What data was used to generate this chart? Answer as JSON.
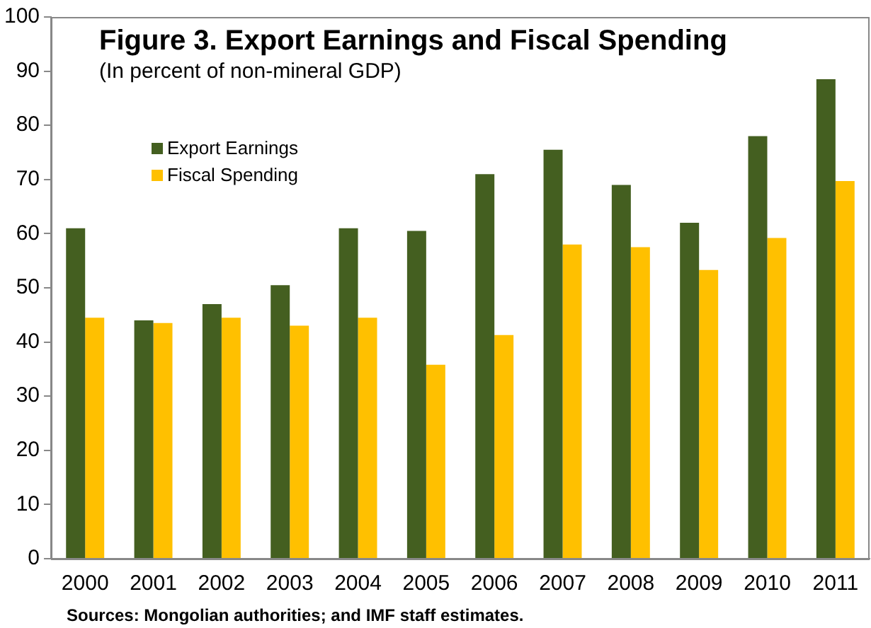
{
  "chart_data": {
    "type": "bar",
    "title": "Figure 3. Export Earnings and Fiscal Spending",
    "subtitle": "(In percent of non-mineral GDP)",
    "annotations": [
      "Sources: Mongolian authorities; and IMF staff estimates."
    ],
    "categories": [
      "2000",
      "2001",
      "2002",
      "2003",
      "2004",
      "2005",
      "2006",
      "2007",
      "2008",
      "2009",
      "2010",
      "2011"
    ],
    "series": [
      {
        "name": "Export Earnings",
        "color": "#445f20",
        "values": [
          61,
          44,
          47,
          50.5,
          61,
          60.5,
          71,
          75.5,
          69,
          62,
          78,
          88.5
        ]
      },
      {
        "name": "Fiscal Spending",
        "color": "#ffc000",
        "values": [
          44.5,
          43.5,
          44.5,
          43,
          44.5,
          35.8,
          41.3,
          58,
          57.5,
          53.3,
          59.2,
          69.7
        ]
      }
    ],
    "ylim": [
      0,
      100
    ],
    "yticks": [
      0,
      10,
      20,
      30,
      40,
      50,
      60,
      70,
      80,
      90,
      100
    ],
    "grid": false,
    "legend": "top left"
  }
}
